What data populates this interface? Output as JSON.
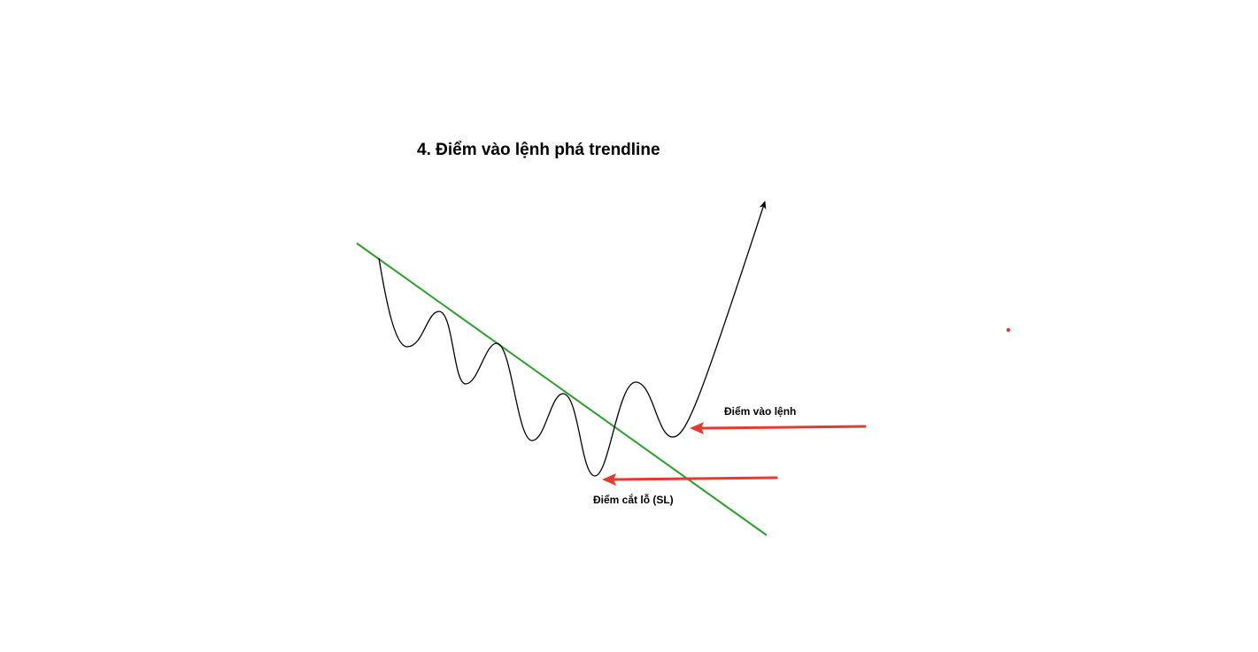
{
  "title": "4. Điểm vào lệnh phá trendline",
  "labels": {
    "entry": "Điểm vào lệnh",
    "stop_loss": "Điểm cắt lỗ (SL)"
  },
  "colors": {
    "trendline": "#2ca02c",
    "price_path": "#000000",
    "arrows": "#e53a2f",
    "marker_dot": "#e53a2f",
    "background": "#ffffff"
  }
}
